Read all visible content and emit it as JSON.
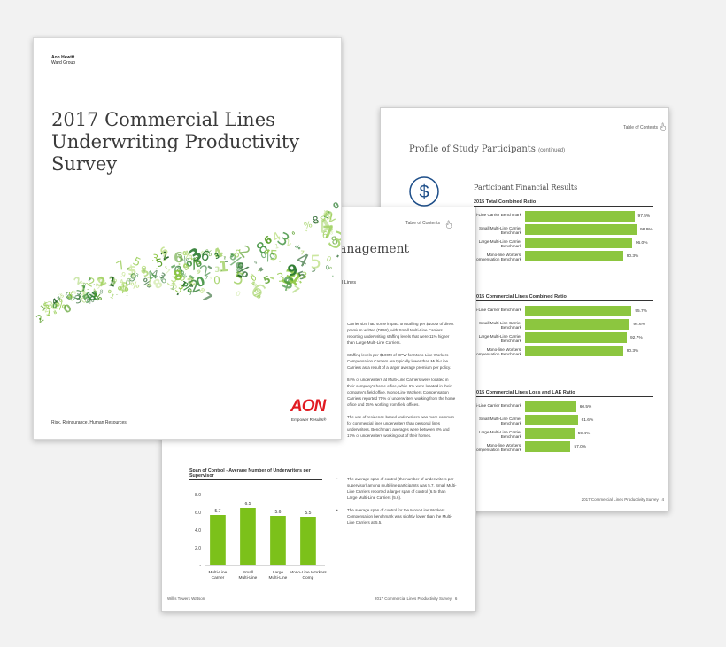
{
  "colors": {
    "accent_green": "#8cc63f",
    "aon_red": "#e11b22",
    "dark_green": "#1f5f23"
  },
  "right_page": {
    "toc_link": "Table of Contents",
    "title": "Profile of Study Participants",
    "title_suffix": "(continued)",
    "icon": "dollar-icon",
    "section_title": "Participant Financial Results",
    "footer": "2017 Commercial Lines Productivity Survey",
    "page_number": "4"
  },
  "middle_page": {
    "toc_link": "Table of Contents",
    "heading": "anagement",
    "subheading": "al Lines",
    "paragraphs": [
      "Carrier size had some impact on staffing per $100M of direct premium written (DPW), with Small Multi-Line Carriers reporting underwriting staffing levels that were 11% higher than Large Multi-Line Carriers.",
      "Staffing levels per $100M of DPW for Mono-Line Workers Compensation Carriers are typically lower than Multi-Line Carriers as a result of a larger average premium per policy.",
      "84% of underwriters at Multi-Line Carriers were located in their company's home office, while 6% were located in their company's field office. Mono-Line Workers Compensation Carriers reported 70% of underwriters working from the home office and 15% working from field offices.",
      "The use of residence-based underwriters was more common for commercial lines underwriters than personal lines underwriters. Benchmark averages were between 8% and 17% of underwriters working out of their homes."
    ],
    "bullets": [
      "The average span of control (the number of underwriters per supervisor) among multi-line participants was 5.7. Small Multi-Line Carriers reported a larger span of control (6.5) than Large Multi-Line Carriers (5.6).",
      "The average span of control for the Mono-Line Workers Compensation benchmark was slightly lower than the Multi-Line Carriers at 5.5."
    ],
    "footer_left": "Willis Towers Watson",
    "footer_right": "2017 Commercial Lines Productivity Survey",
    "page_number": "6"
  },
  "cover": {
    "brand_line1": "Aon Hewitt",
    "brand_line2": "Ward Group",
    "title": "2017 Commercial Lines Underwriting Productivity Survey",
    "tagline": "Risk. Reinsurance. Human Resources.",
    "logo_text": "AON",
    "logo_tagline": "Empower Results®"
  },
  "chart_data": [
    {
      "type": "bar",
      "orientation": "horizontal",
      "title": "2015 Total Combined Ratio",
      "categories": [
        "Multi-Line Carrier Benchmark",
        "Small Multi-Line Carrier Benchmark",
        "Large Multi-Line Carrier Benchmark",
        "Mono-line Workers' Compensation Benchmark"
      ],
      "values": [
        97.5,
        98.9,
        96.0,
        90.3
      ],
      "labels": [
        "97.5%",
        "98.9%",
        "96.0%",
        "90.3%"
      ],
      "xlim": [
        0,
        100
      ]
    },
    {
      "type": "bar",
      "orientation": "horizontal",
      "title": "2015 Commercial Lines Combined Ratio",
      "categories": [
        "Multi-Line Carrier Benchmark",
        "Small Multi-Line Carrier Benchmark",
        "Large Multi-Line Carrier Benchmark",
        "Mono-line Workers' Compensation Benchmark"
      ],
      "values": [
        95.7,
        94.6,
        92.7,
        90.3
      ],
      "labels": [
        "95.7%",
        "94.6%",
        "92.7%",
        "90.3%"
      ],
      "xlim": [
        0,
        100
      ]
    },
    {
      "type": "bar",
      "orientation": "horizontal",
      "title": "2015 Commercial Lines Loss and LAE Ratio",
      "categories": [
        "Multi-Line Carrier Benchmark",
        "Small Multi-Line Carrier Benchmark",
        "Large Multi-Line Carrier Benchmark",
        "Mono-line Workers' Compensation Benchmark"
      ],
      "values": [
        60.5,
        61.6,
        59.4,
        57.0
      ],
      "labels": [
        "60.5%",
        "61.6%",
        "59.4%",
        "57.0%"
      ],
      "xlim": [
        0,
        100
      ]
    },
    {
      "type": "bar",
      "title": "Span of Control - Average Number of Underwriters per Supervisor",
      "categories": [
        "Multi-Line Carrier",
        "Small Multi-Line",
        "Large Multi-Line",
        "Mono-Line Workers Comp"
      ],
      "values": [
        5.7,
        6.5,
        5.6,
        5.5
      ],
      "labels": [
        "5.7",
        "6.5",
        "5.6",
        "5.5"
      ],
      "yticks": [
        "8.0",
        "6.0",
        "4.0",
        "2.0",
        "-"
      ],
      "ylim": [
        0,
        8
      ]
    }
  ]
}
